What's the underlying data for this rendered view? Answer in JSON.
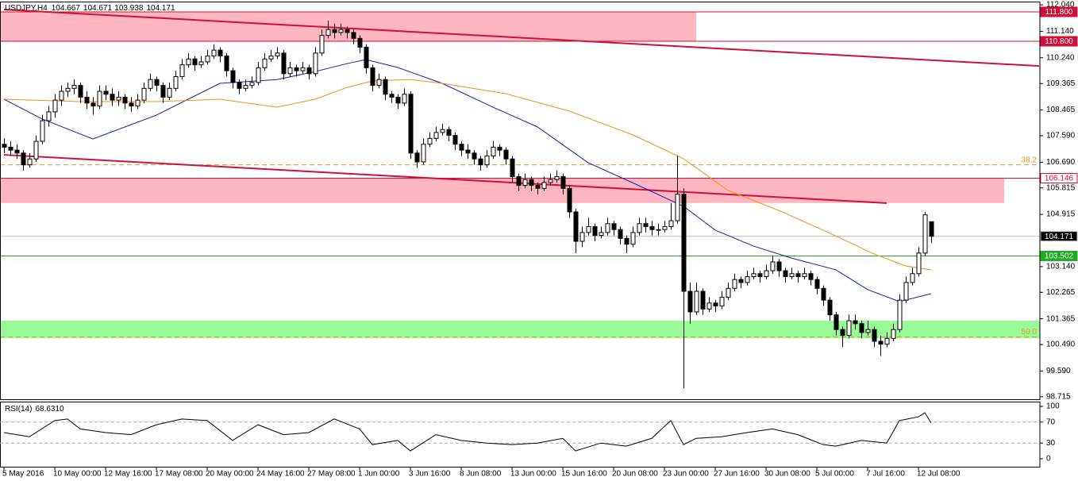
{
  "chart_data": {
    "type": "candlestick",
    "symbol": "USDJPY,H4",
    "ylim": [
      98.63,
      112.15
    ],
    "yticks": [
      {
        "value": 112.04,
        "label": "112.040"
      },
      {
        "value": 111.14,
        "label": "111.140"
      },
      {
        "value": 110.24,
        "label": "110.240"
      },
      109.365,
      108.465,
      {
        "value": 107.59,
        "label": "107.590"
      },
      {
        "value": 106.69,
        "label": "106.690"
      },
      105.815,
      104.915,
      {
        "value": 103.14,
        "label": "103.140"
      },
      102.265,
      101.365,
      {
        "value": 100.49,
        "label": "100.490"
      },
      {
        "value": 99.59,
        "label": "99.590"
      },
      98.715
    ],
    "xticks": [
      {
        "index": 0,
        "label": "5 May 2016"
      },
      {
        "index": 8,
        "label": "10 May 00:00"
      },
      {
        "index": 16,
        "label": "12 May 16:00"
      },
      {
        "index": 24,
        "label": "17 May 08:00"
      },
      {
        "index": 32,
        "label": "20 May 00:00"
      },
      {
        "index": 40,
        "label": "24 May 16:00"
      },
      {
        "index": 48,
        "label": "27 May 08:00"
      },
      {
        "index": 56,
        "label": "1 Jun 00:00"
      },
      {
        "index": 64,
        "label": "3 Jun 16:00"
      },
      {
        "index": 72,
        "label": "8 Jun 08:00"
      },
      {
        "index": 80,
        "label": "13 Jun 00:00"
      },
      {
        "index": 88,
        "label": "15 Jun 16:00"
      },
      {
        "index": 96,
        "label": "20 Jun 08:00"
      },
      {
        "index": 104,
        "label": "23 Jun 00:00"
      },
      {
        "index": 112,
        "label": "27 Jun 16:00"
      },
      {
        "index": 120,
        "label": "30 Jun 08:00"
      },
      {
        "index": 128,
        "label": "5 Jul 00:00"
      },
      {
        "index": 136,
        "label": "7 Jul 16:00"
      },
      {
        "index": 144,
        "label": "12 Jul 08:00"
      }
    ],
    "candles": [
      [
        107.3,
        107.5,
        107.0,
        107.2
      ],
      [
        107.2,
        107.4,
        106.9,
        107.1
      ],
      [
        107.1,
        107.3,
        106.8,
        107.0
      ],
      [
        107.0,
        107.1,
        106.4,
        106.6
      ],
      [
        106.6,
        107.0,
        106.5,
        106.8
      ],
      [
        106.8,
        107.6,
        106.7,
        107.4
      ],
      [
        107.4,
        108.3,
        107.3,
        108.1
      ],
      [
        108.1,
        108.6,
        107.9,
        108.4
      ],
      [
        108.4,
        109.0,
        108.2,
        108.8
      ],
      [
        108.8,
        109.3,
        108.6,
        109.1
      ],
      [
        109.1,
        109.4,
        108.9,
        109.2
      ],
      [
        109.2,
        109.5,
        109.0,
        109.3
      ],
      [
        109.3,
        109.4,
        108.7,
        108.9
      ],
      [
        108.9,
        109.1,
        108.5,
        108.7
      ],
      [
        108.7,
        108.9,
        108.3,
        108.6
      ],
      [
        108.6,
        109.3,
        108.5,
        109.1
      ],
      [
        109.1,
        109.3,
        108.8,
        109.0
      ],
      [
        109.0,
        109.2,
        108.6,
        108.8
      ],
      [
        108.8,
        109.1,
        108.6,
        108.9
      ],
      [
        108.9,
        109.0,
        108.5,
        108.7
      ],
      [
        108.7,
        108.9,
        108.4,
        108.6
      ],
      [
        108.6,
        109.0,
        108.5,
        108.8
      ],
      [
        108.8,
        109.4,
        108.7,
        109.2
      ],
      [
        109.2,
        109.7,
        109.1,
        109.5
      ],
      [
        109.5,
        109.6,
        109.1,
        109.3
      ],
      [
        109.3,
        109.4,
        108.7,
        108.9
      ],
      [
        108.9,
        109.4,
        108.8,
        109.2
      ],
      [
        109.2,
        109.8,
        109.1,
        109.6
      ],
      [
        109.6,
        110.2,
        109.5,
        110.0
      ],
      [
        110.0,
        110.4,
        109.9,
        110.2
      ],
      [
        110.2,
        110.3,
        109.8,
        110.0
      ],
      [
        110.0,
        110.3,
        109.9,
        110.1
      ],
      [
        110.1,
        110.5,
        110.0,
        110.3
      ],
      [
        110.3,
        110.7,
        110.2,
        110.5
      ],
      [
        110.5,
        110.6,
        110.1,
        110.3
      ],
      [
        110.3,
        110.4,
        109.6,
        109.8
      ],
      [
        109.8,
        109.9,
        109.2,
        109.4
      ],
      [
        109.4,
        109.5,
        109.0,
        109.2
      ],
      [
        109.2,
        109.5,
        109.1,
        109.3
      ],
      [
        109.3,
        109.6,
        109.2,
        109.4
      ],
      [
        109.4,
        110.1,
        109.3,
        109.9
      ],
      [
        109.9,
        110.4,
        109.8,
        110.2
      ],
      [
        110.2,
        110.5,
        110.1,
        110.3
      ],
      [
        110.3,
        110.6,
        110.2,
        110.4
      ],
      [
        110.4,
        110.5,
        109.5,
        109.7
      ],
      [
        109.7,
        110.1,
        109.6,
        109.9
      ],
      [
        109.9,
        110.0,
        109.6,
        109.8
      ],
      [
        109.8,
        110.1,
        109.7,
        109.9
      ],
      [
        109.9,
        110.0,
        109.5,
        109.7
      ],
      [
        109.7,
        110.6,
        109.6,
        110.4
      ],
      [
        110.4,
        111.2,
        110.3,
        111.0
      ],
      [
        111.0,
        111.5,
        110.9,
        111.2
      ],
      [
        111.2,
        111.4,
        110.9,
        111.1
      ],
      [
        111.1,
        111.4,
        111.0,
        111.2
      ],
      [
        111.2,
        111.3,
        110.9,
        111.1
      ],
      [
        111.1,
        111.2,
        110.7,
        110.9
      ],
      [
        110.9,
        111.0,
        110.4,
        110.6
      ],
      [
        110.6,
        110.7,
        109.7,
        109.9
      ],
      [
        109.9,
        110.0,
        109.1,
        109.3
      ],
      [
        109.3,
        109.7,
        109.2,
        109.5
      ],
      [
        109.5,
        109.6,
        108.8,
        109.0
      ],
      [
        109.0,
        109.1,
        108.7,
        108.9
      ],
      [
        108.9,
        109.0,
        108.5,
        108.7
      ],
      [
        108.7,
        109.2,
        108.6,
        109.0
      ],
      [
        109.0,
        109.1,
        106.8,
        107.0
      ],
      [
        107.0,
        107.1,
        106.5,
        106.7
      ],
      [
        106.7,
        107.5,
        106.6,
        107.3
      ],
      [
        107.3,
        107.7,
        107.2,
        107.5
      ],
      [
        107.5,
        107.9,
        107.4,
        107.7
      ],
      [
        107.7,
        108.0,
        107.6,
        107.8
      ],
      [
        107.8,
        107.9,
        107.4,
        107.6
      ],
      [
        107.6,
        107.7,
        107.1,
        107.3
      ],
      [
        107.3,
        107.4,
        106.9,
        107.1
      ],
      [
        107.1,
        107.3,
        106.8,
        107.0
      ],
      [
        107.0,
        107.1,
        106.6,
        106.8
      ],
      [
        106.8,
        106.9,
        106.4,
        106.6
      ],
      [
        106.6,
        107.1,
        106.5,
        106.9
      ],
      [
        106.9,
        107.4,
        106.8,
        107.2
      ],
      [
        107.2,
        107.3,
        106.9,
        107.1
      ],
      [
        107.1,
        107.2,
        106.6,
        106.8
      ],
      [
        106.8,
        106.9,
        106.0,
        106.2
      ],
      [
        106.2,
        106.3,
        105.7,
        105.9
      ],
      [
        105.9,
        106.3,
        105.8,
        106.1
      ],
      [
        106.1,
        106.2,
        105.7,
        105.9
      ],
      [
        105.9,
        106.0,
        105.6,
        105.8
      ],
      [
        105.8,
        106.2,
        105.7,
        106.0
      ],
      [
        106.0,
        106.3,
        105.9,
        106.1
      ],
      [
        106.1,
        106.4,
        106.0,
        106.2
      ],
      [
        106.2,
        106.3,
        105.6,
        105.8
      ],
      [
        105.8,
        105.9,
        104.8,
        105.0
      ],
      [
        105.0,
        105.1,
        103.6,
        104.0
      ],
      [
        104.0,
        104.5,
        103.8,
        104.3
      ],
      [
        104.3,
        104.8,
        104.2,
        104.5
      ],
      [
        104.5,
        104.6,
        104.0,
        104.2
      ],
      [
        104.2,
        104.5,
        104.1,
        104.3
      ],
      [
        104.3,
        104.8,
        104.2,
        104.6
      ],
      [
        104.6,
        104.7,
        104.2,
        104.4
      ],
      [
        104.4,
        104.5,
        103.9,
        104.1
      ],
      [
        104.1,
        104.2,
        103.6,
        103.9
      ],
      [
        103.9,
        104.5,
        103.8,
        104.3
      ],
      [
        104.3,
        104.8,
        104.2,
        104.6
      ],
      [
        104.6,
        104.8,
        104.3,
        104.5
      ],
      [
        104.5,
        104.7,
        104.2,
        104.4
      ],
      [
        104.4,
        104.6,
        104.2,
        104.4
      ],
      [
        104.4,
        104.7,
        104.3,
        104.5
      ],
      [
        104.5,
        105.3,
        104.4,
        104.7
      ],
      [
        104.7,
        106.9,
        104.6,
        105.6
      ],
      [
        105.6,
        105.8,
        99.0,
        102.3
      ],
      [
        102.3,
        102.6,
        101.2,
        101.6
      ],
      [
        101.6,
        102.6,
        101.5,
        102.3
      ],
      [
        102.3,
        102.4,
        101.5,
        101.7
      ],
      [
        101.7,
        102.1,
        101.6,
        101.9
      ],
      [
        101.9,
        102.0,
        101.6,
        101.8
      ],
      [
        101.8,
        102.3,
        101.7,
        102.1
      ],
      [
        102.1,
        102.6,
        102.0,
        102.4
      ],
      [
        102.4,
        102.9,
        102.3,
        102.7
      ],
      [
        102.7,
        102.8,
        102.4,
        102.6
      ],
      [
        102.6,
        103.0,
        102.5,
        102.8
      ],
      [
        102.8,
        103.1,
        102.7,
        102.9
      ],
      [
        102.9,
        103.0,
        102.6,
        102.8
      ],
      [
        102.8,
        103.2,
        102.7,
        103.0
      ],
      [
        103.0,
        103.5,
        102.9,
        103.3
      ],
      [
        103.3,
        103.4,
        102.8,
        103.0
      ],
      [
        103.0,
        103.1,
        102.6,
        102.8
      ],
      [
        102.8,
        103.1,
        102.7,
        102.9
      ],
      [
        102.9,
        103.0,
        102.6,
        102.8
      ],
      [
        102.8,
        103.1,
        102.7,
        102.9
      ],
      [
        102.9,
        103.0,
        102.5,
        102.7
      ],
      [
        102.7,
        102.8,
        102.2,
        102.4
      ],
      [
        102.4,
        102.5,
        101.8,
        102.0
      ],
      [
        102.0,
        102.1,
        101.3,
        101.5
      ],
      [
        101.5,
        101.6,
        100.8,
        101.0
      ],
      [
        101.0,
        101.1,
        100.4,
        100.8
      ],
      [
        100.8,
        101.5,
        100.7,
        101.3
      ],
      [
        101.3,
        101.5,
        101.0,
        101.2
      ],
      [
        101.2,
        101.3,
        100.7,
        100.9
      ],
      [
        100.9,
        101.3,
        100.8,
        101.0
      ],
      [
        101.0,
        101.1,
        100.4,
        100.6
      ],
      [
        100.6,
        100.8,
        100.1,
        100.5
      ],
      [
        100.5,
        100.9,
        100.4,
        100.7
      ],
      [
        100.7,
        101.2,
        100.6,
        101.0
      ],
      [
        101.0,
        102.2,
        100.9,
        102.0
      ],
      [
        102.0,
        102.8,
        101.9,
        102.6
      ],
      [
        102.6,
        103.1,
        102.5,
        102.9
      ],
      [
        102.9,
        103.8,
        102.8,
        103.6
      ],
      [
        103.6,
        105.0,
        103.5,
        104.9
      ],
      [
        104.667,
        104.671,
        103.938,
        104.171
      ]
    ],
    "moving_averages": [
      {
        "color": "#1a1aa8",
        "index": [
          0,
          6,
          14,
          24,
          34,
          43,
          49,
          54,
          57,
          62,
          69,
          77,
          84,
          92,
          99,
          107,
          112,
          118,
          124,
          131,
          136,
          141,
          146
        ],
        "values": [
          108.83,
          108.16,
          107.48,
          108.29,
          109.37,
          109.5,
          109.77,
          110.04,
          110.18,
          109.91,
          109.37,
          108.56,
          107.89,
          106.67,
          105.99,
          105.19,
          104.38,
          103.84,
          103.43,
          103.03,
          102.36,
          101.95,
          102.22
        ]
      },
      {
        "color": "#f0901a",
        "index": [
          0,
          12,
          24,
          34,
          43,
          49,
          54,
          58,
          64,
          69,
          79,
          89,
          99,
          107,
          114,
          122,
          129,
          137,
          142,
          146
        ],
        "values": [
          108.83,
          108.75,
          108.75,
          108.83,
          108.56,
          108.83,
          109.23,
          109.45,
          109.5,
          109.37,
          109.02,
          108.43,
          107.62,
          106.81,
          105.73,
          105.05,
          104.38,
          103.57,
          103.16,
          103.03
        ]
      }
    ],
    "zones": [
      {
        "low": 110.8,
        "high": 111.8,
        "until_index": 109,
        "color": "#ffb6c1"
      },
      {
        "low": 105.3,
        "high": 106.146,
        "until_index": 157.5,
        "color": "#ffb6c1"
      },
      {
        "low": 100.7,
        "high": 101.3,
        "color": "#98fb98"
      }
    ],
    "trendlines": [
      {
        "from": [
          0,
          111.88
        ],
        "to": [
          163,
          109.96
        ],
        "color": "#d0103a"
      },
      {
        "from": [
          0,
          106.94
        ],
        "to": [
          139,
          105.3
        ],
        "color": "#d0103a"
      }
    ],
    "levels": [
      {
        "value": 111.8,
        "label": "111.800",
        "color": "#d0103a",
        "box": "#d0103a",
        "text": "#fff"
      },
      {
        "value": 110.8,
        "label": "110.800",
        "color": "#d0103a",
        "box": "#d0103a",
        "text": "#fff"
      },
      {
        "value": 106.146,
        "color": "#d0103a",
        "box": "#fff",
        "text": "#d0103a"
      },
      {
        "value": 104.171,
        "color": "#c0c0c0",
        "box": "#000",
        "text": "#fff"
      },
      {
        "value": 103.502,
        "color": "#22aa22",
        "box": "#22aa22",
        "text": "#fff"
      }
    ],
    "fibonacci": [
      {
        "price": 106.6,
        "level": 38.2,
        "color": "#f0901a"
      },
      {
        "price": 100.75,
        "level": 50,
        "level_label": "50.0",
        "color": "#f0901a"
      }
    ],
    "rsi": {
      "name": "RSI(14)",
      "value": 68.631,
      "value_label": "68.6310",
      "ylim": [
        0,
        100
      ],
      "yticks": [
        100,
        70,
        30,
        0
      ],
      "levels": [
        70,
        30
      ],
      "index": [
        0,
        4,
        8,
        10,
        12,
        16,
        20,
        24,
        28,
        32,
        36,
        40,
        44,
        48,
        52,
        56,
        58,
        62,
        64,
        68,
        72,
        76,
        80,
        84,
        88,
        90,
        94,
        98,
        102,
        105,
        107,
        109,
        113,
        117,
        121,
        125,
        129,
        131,
        135,
        139,
        141,
        144,
        145,
        146
      ],
      "values": [
        50,
        42,
        73,
        76,
        57,
        50,
        46,
        65,
        76,
        73,
        35,
        65,
        46,
        50,
        76,
        57,
        27,
        35,
        15,
        46,
        35,
        30,
        27,
        30,
        39,
        15,
        30,
        24,
        39,
        73,
        27,
        39,
        42,
        50,
        57,
        46,
        27,
        24,
        35,
        30,
        73,
        80,
        88,
        68.631
      ]
    }
  }
}
